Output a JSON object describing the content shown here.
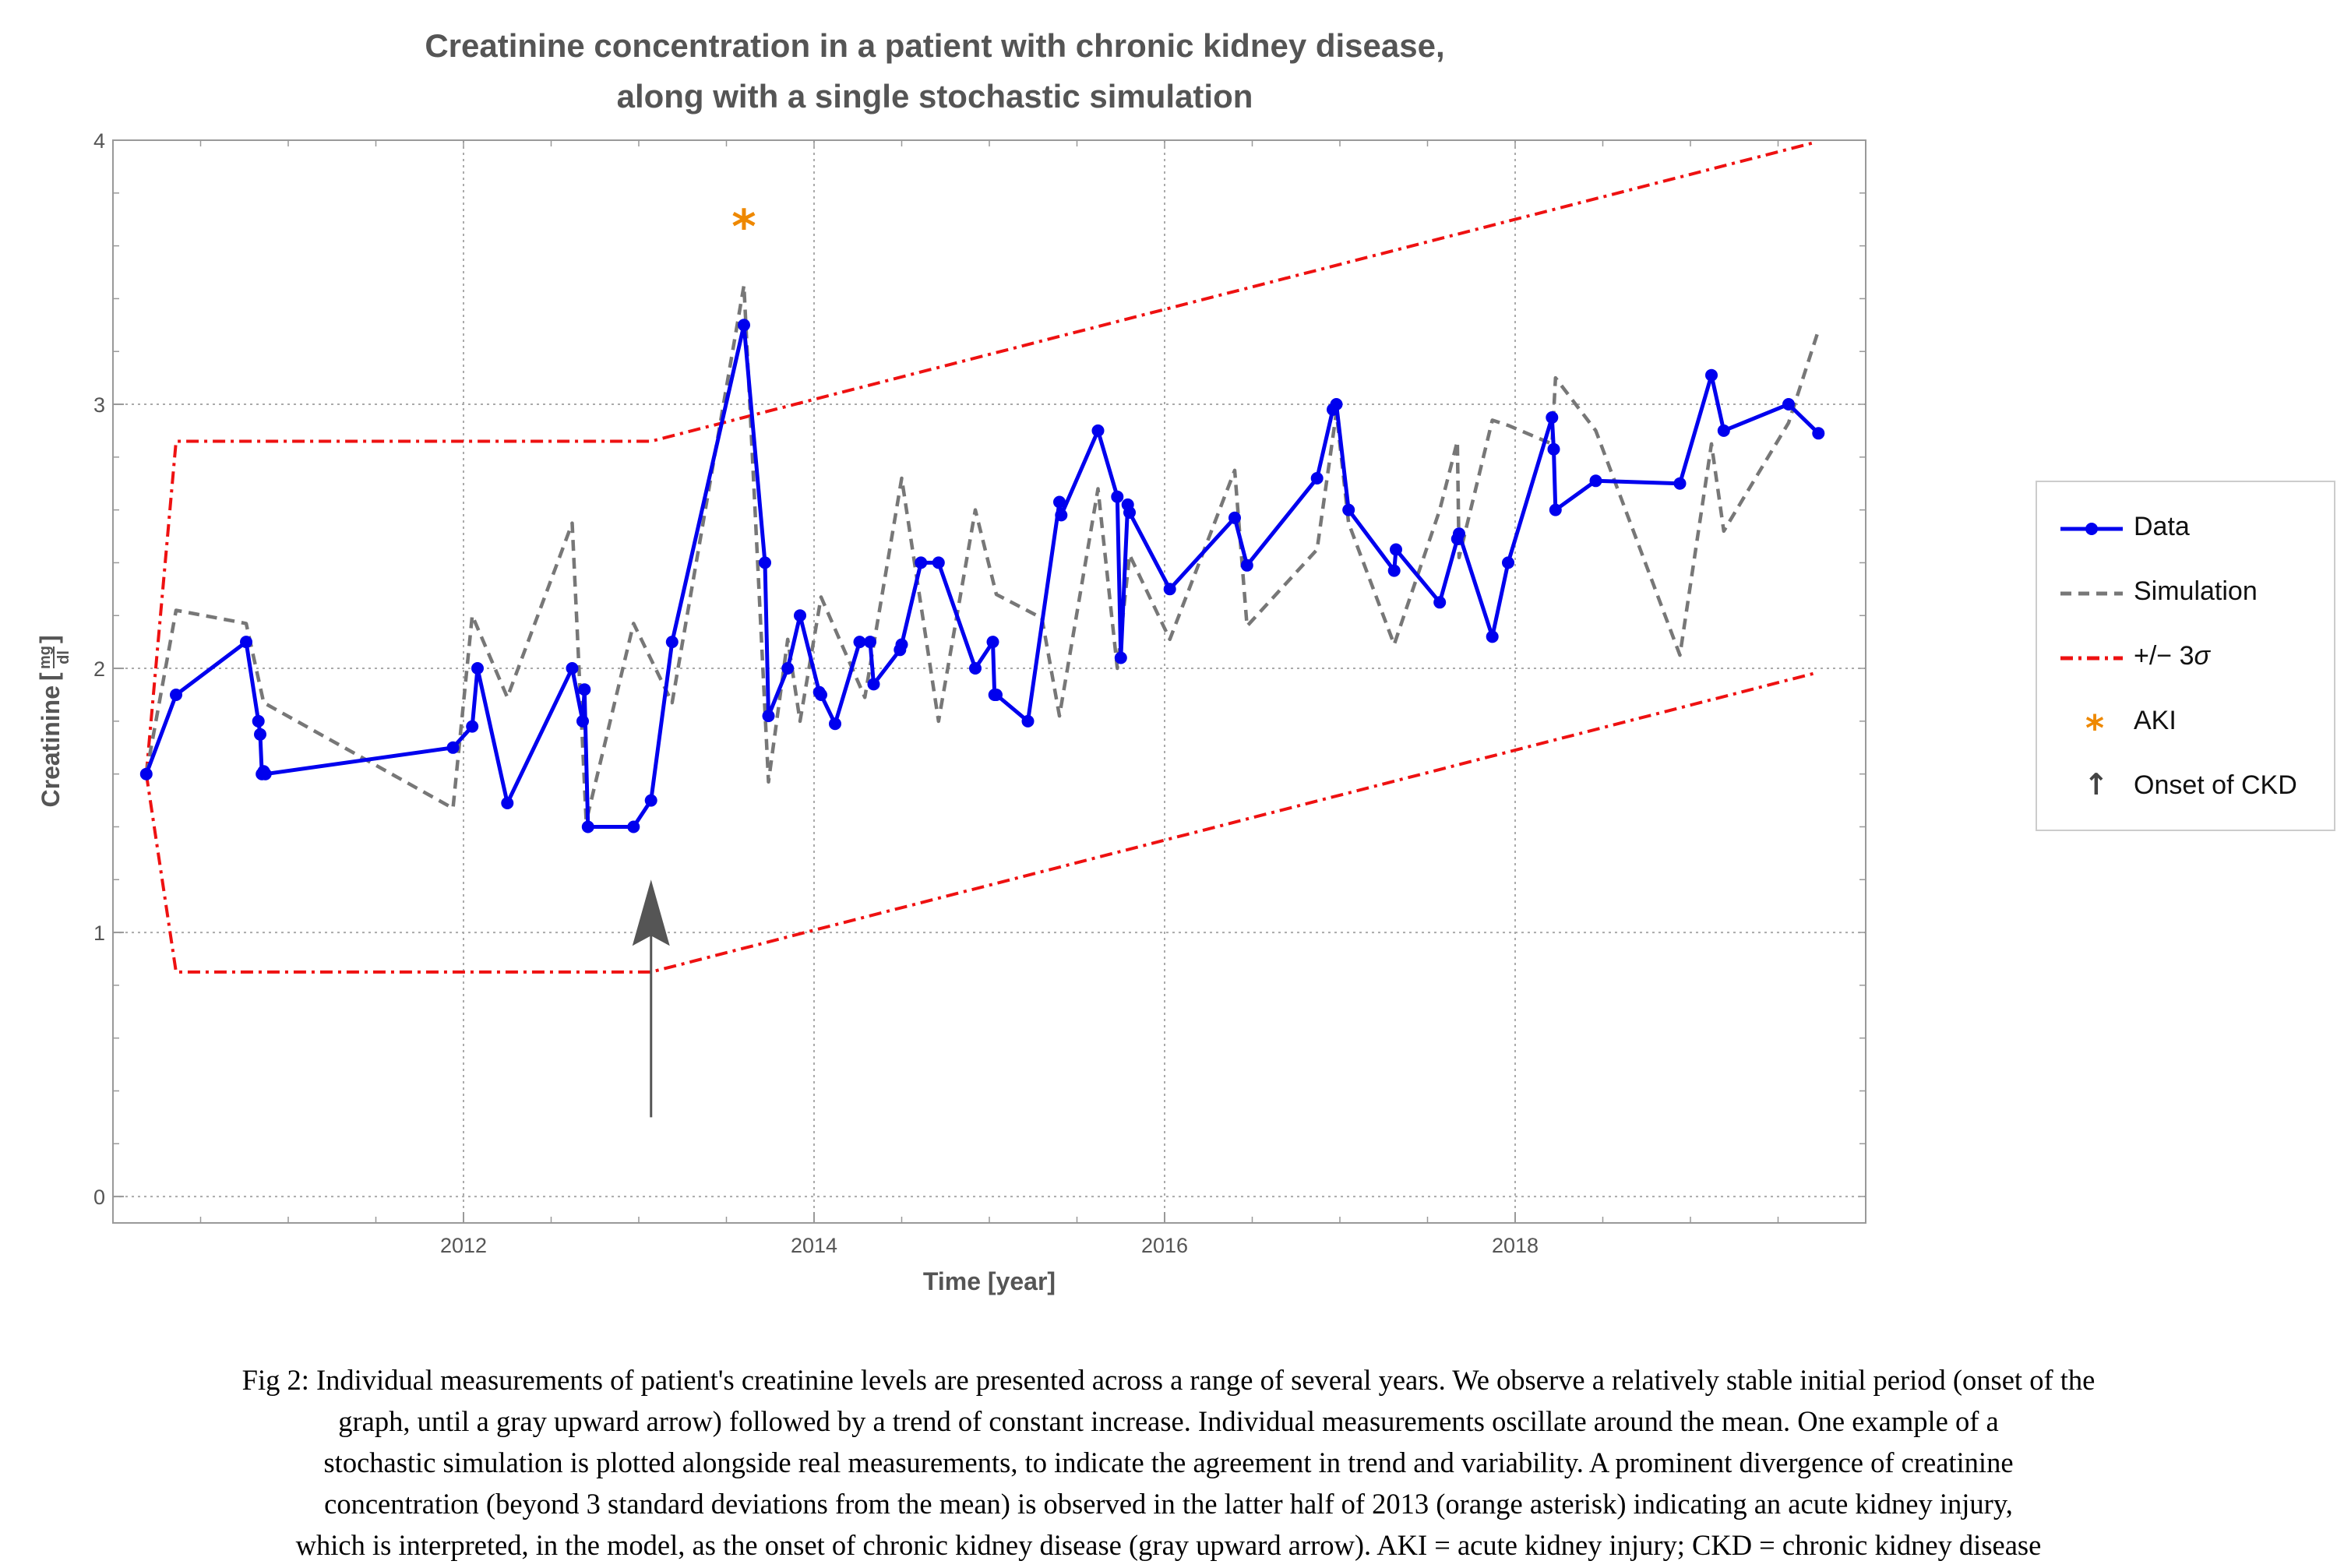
{
  "chart_data": {
    "type": "line",
    "title_lines": [
      "Creatinine concentration in a patient with chronic kidney disease,",
      "along with a single stochastic simulation"
    ],
    "xlabel": "Time [year]",
    "ylabel": "Creatinine",
    "ylabel_unit_numerator": "mg",
    "ylabel_unit_denominator": "dl",
    "xlim": [
      2010.0,
      2020.0
    ],
    "ylim": [
      -0.1,
      4.0
    ],
    "x_ticks": [
      2012,
      2014,
      2016,
      2018
    ],
    "y_ticks": [
      0,
      1,
      2,
      3,
      4
    ],
    "grid": true,
    "legend_position": "right",
    "series": [
      {
        "name": "Data",
        "color": "#0000ee",
        "style": "solid-with-markers",
        "x": [
          2010.19,
          2010.36,
          2010.76,
          2010.83,
          2010.84,
          2010.85,
          2010.86,
          2010.87,
          2011.94,
          2012.05,
          2012.08,
          2012.25,
          2012.62,
          2012.68,
          2012.69,
          2012.71,
          2012.97,
          2013.07,
          2013.19,
          2013.6,
          2013.72,
          2013.74,
          2013.85,
          2013.92,
          2014.03,
          2014.04,
          2014.12,
          2014.26,
          2014.32,
          2014.34,
          2014.49,
          2014.5,
          2014.61,
          2014.71,
          2014.92,
          2015.02,
          2015.03,
          2015.04,
          2015.22,
          2015.4,
          2015.41,
          2015.62,
          2015.73,
          2015.75,
          2015.79,
          2015.8,
          2016.03,
          2016.4,
          2016.47,
          2016.87,
          2016.96,
          2016.98,
          2017.05,
          2017.31,
          2017.32,
          2017.57,
          2017.67,
          2017.68,
          2017.87,
          2017.96,
          2018.21,
          2018.22,
          2018.23,
          2018.46,
          2018.94,
          2019.12,
          2019.19,
          2019.56,
          2019.73
        ],
        "y": [
          1.6,
          1.9,
          2.1,
          1.8,
          1.75,
          1.6,
          1.61,
          1.6,
          1.7,
          1.78,
          2.0,
          1.49,
          2.0,
          1.8,
          1.92,
          1.4,
          1.4,
          1.5,
          2.1,
          3.3,
          2.4,
          1.82,
          2.0,
          2.2,
          1.91,
          1.9,
          1.79,
          2.1,
          2.1,
          1.94,
          2.07,
          2.09,
          2.4,
          2.4,
          2.0,
          2.1,
          1.9,
          1.9,
          1.8,
          2.63,
          2.58,
          2.9,
          2.65,
          2.04,
          2.62,
          2.59,
          2.3,
          2.57,
          2.39,
          2.72,
          2.98,
          3.0,
          2.6,
          2.37,
          2.45,
          2.25,
          2.49,
          2.51,
          2.12,
          2.4,
          2.95,
          2.83,
          2.6,
          2.71,
          2.7,
          3.11,
          2.9,
          3.0,
          2.89
        ]
      },
      {
        "name": "Simulation",
        "color": "#777777",
        "style": "dashed",
        "x": [
          2010.19,
          2010.36,
          2010.76,
          2010.86,
          2011.94,
          2012.05,
          2012.25,
          2012.62,
          2012.7,
          2012.97,
          2013.19,
          2013.6,
          2013.74,
          2013.85,
          2013.92,
          2014.04,
          2014.29,
          2014.5,
          2014.71,
          2014.92,
          2015.04,
          2015.3,
          2015.4,
          2015.62,
          2015.73,
          2015.8,
          2016.03,
          2016.4,
          2016.47,
          2016.87,
          2016.98,
          2017.05,
          2017.31,
          2017.57,
          2017.67,
          2017.68,
          2017.87,
          2017.96,
          2018.21,
          2018.23,
          2018.46,
          2018.94,
          2019.12,
          2019.19,
          2019.56,
          2019.73
        ],
        "y": [
          1.6,
          2.22,
          2.17,
          1.87,
          1.47,
          2.2,
          1.89,
          2.55,
          1.42,
          2.17,
          1.87,
          3.45,
          1.57,
          2.11,
          1.8,
          2.27,
          1.89,
          2.72,
          1.8,
          2.6,
          2.28,
          2.19,
          1.82,
          2.68,
          2.0,
          2.43,
          2.11,
          2.75,
          2.16,
          2.45,
          2.97,
          2.55,
          2.09,
          2.6,
          2.86,
          2.42,
          2.94,
          2.92,
          2.85,
          3.1,
          2.9,
          2.05,
          2.85,
          2.52,
          2.93,
          3.28
        ]
      },
      {
        "name": "+/− 3σ",
        "color": "#ee1111",
        "style": "dash-dot",
        "upper": {
          "x": [
            2010.19,
            2010.36,
            2013.07,
            2019.7
          ],
          "y": [
            1.6,
            2.86,
            2.86,
            3.99
          ]
        },
        "lower": {
          "x": [
            2010.19,
            2010.36,
            2013.07,
            2019.7
          ],
          "y": [
            1.6,
            0.85,
            0.85,
            1.98
          ]
        }
      }
    ],
    "annotations": [
      {
        "name": "AKI",
        "type": "asterisk",
        "color": "#ee8800",
        "x": 2013.6,
        "y": 3.7,
        "symbol": "*"
      },
      {
        "name": "Onset of CKD",
        "type": "arrow",
        "color": "#555555",
        "x": 2013.07,
        "y_from": 0.3,
        "y_to": 1.2
      }
    ]
  },
  "legend": {
    "items": [
      {
        "label": "Data"
      },
      {
        "label": "Simulation"
      },
      {
        "label": "+/− 3",
        "label_sigma": "σ"
      },
      {
        "label": "AKI",
        "symbol": "*"
      },
      {
        "label": "Onset of CKD",
        "symbol": "↑"
      }
    ]
  },
  "caption": {
    "lines": [
      "Fig 2: Individual measurements of patient's creatinine levels are presented across a range of several years. We observe a relatively stable initial period (onset of the",
      "graph, until a gray upward arrow) followed by a trend of constant increase. Individual measurements oscillate around the mean. One example of a",
      "stochastic simulation is plotted alongside real measurements, to indicate the agreement in trend and variability. A prominent divergence of creatinine",
      "concentration (beyond 3 standard deviations from the mean) is observed in the latter half of 2013 (orange asterisk) indicating an acute kidney injury,",
      "which is interpreted, in the model, as the onset of chronic kidney disease (gray upward arrow).  AKI = acute kidney injury; CKD = chronic kidney disease"
    ]
  }
}
